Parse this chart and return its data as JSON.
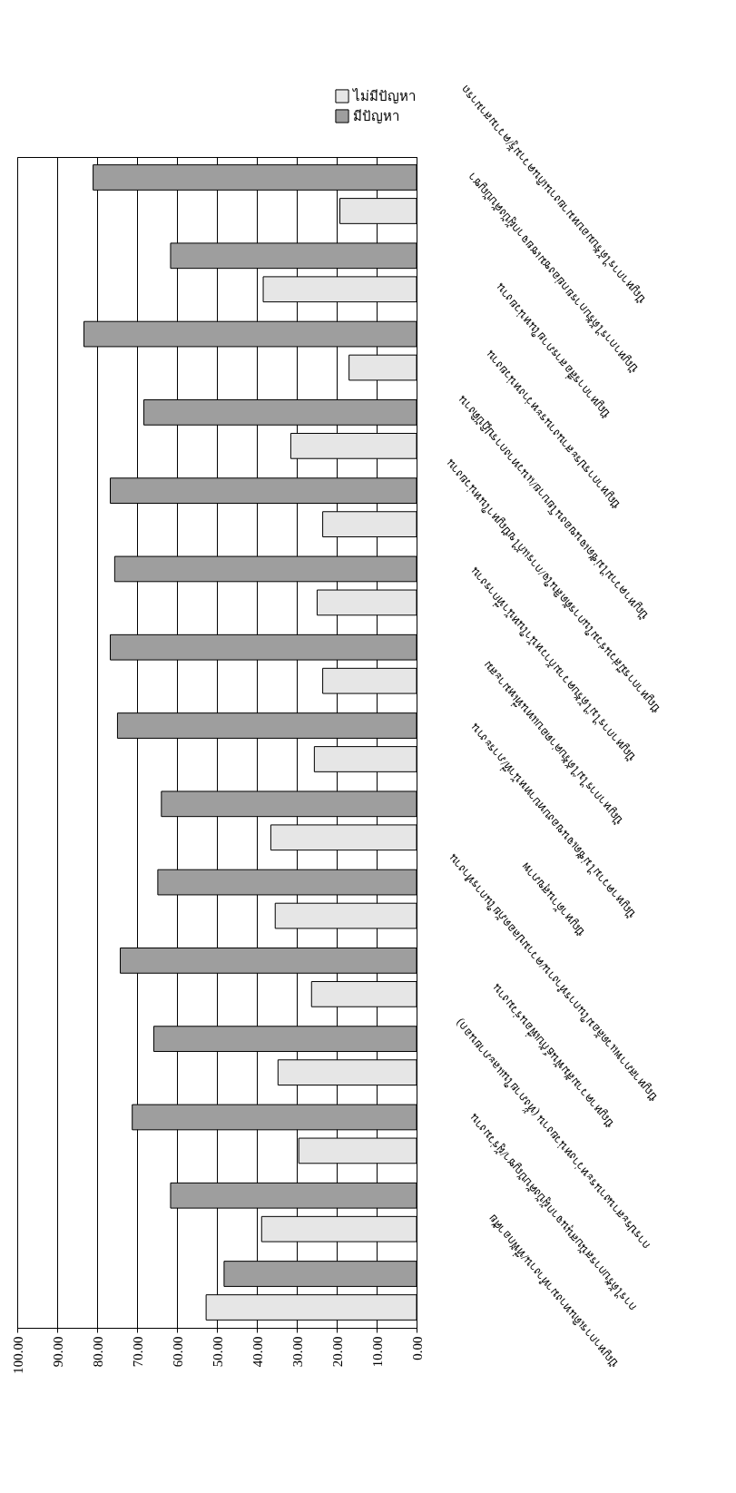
{
  "chart_data": {
    "type": "bar",
    "orientation": "horizontal",
    "categories": [
      "ปัญหาการได้รับมอบหมายงานเกินความรู้/ความสามารถ",
      "ปัญหาการได้รับการยกย่องชมเชยจากผู้บังคับบัญชา",
      "ปัญหาการสื่อสารภายในหน่วยงาน",
      "ปัญหาการประสานงานระหว่างหน่วยงาน",
      "ปัญหาความไม่ชัดเจนของนโยบาย/แนวทางการปฏิบัติงาน",
      "ปัญหาการมีส่วนร่วมในการตัดสินใจ/การแก้ไขปัญหาในหน่วยงาน",
      "ปัญหาการไม่ได้รับความก้าวหน้าในหน้าที่การงาน",
      "ปัญหาการไม่ได้รับค่าตอบแทนที่เหมาะสม",
      "ปัญหาความไม่ชัดเจนของบทบาทหน้าที่/ภาระงาน",
      "ปัญหาด้านสุขภาพ",
      "ปัญหาสภาพแวดล้อมในการทำงาน/ความปลอดภัยในการทำงาน",
      "ปัญหาความสัมพันธ์กับเพื่อนร่วมงาน",
      "การประสานงานระหว่างหน่วยงาน (ทั้งภายในและภายนอก)",
      "การได้รับการสนับสนุนจากผู้บังคับบัญชา/ผู้ร่วมงาน",
      "ปัญหาการเดินทางมาทำงาน/ที่พักอาศัย"
    ],
    "series": [
      {
        "name": "ไม่มีปัญหา",
        "color": "#e6e6e6",
        "values": [
          19.2,
          38.4,
          16.9,
          31.5,
          23.5,
          24.9,
          23.5,
          25.6,
          36.5,
          35.4,
          26.3,
          34.7,
          29.5,
          38.8,
          52.7
        ]
      },
      {
        "name": "มีปัญหา",
        "color": "#9e9e9e",
        "values": [
          81.0,
          61.6,
          83.3,
          68.3,
          76.7,
          75.6,
          76.7,
          74.9,
          63.9,
          64.8,
          74.2,
          65.8,
          71.2,
          61.6,
          48.2
        ]
      }
    ],
    "xlim": [
      100,
      0
    ],
    "xticks": [
      {
        "value": 100,
        "label": "100.00"
      },
      {
        "value": 90,
        "label": "90.00"
      },
      {
        "value": 80,
        "label": "80.00"
      },
      {
        "value": 70,
        "label": "70.00"
      },
      {
        "value": 60,
        "label": "60.00"
      },
      {
        "value": 50,
        "label": "50.00"
      },
      {
        "value": 40,
        "label": "40.00"
      },
      {
        "value": 30,
        "label": "30.00"
      },
      {
        "value": 20,
        "label": "20.00"
      },
      {
        "value": 10,
        "label": "10.00"
      },
      {
        "value": 0,
        "label": "0.00"
      }
    ],
    "grid": "x",
    "legend": "top right"
  }
}
